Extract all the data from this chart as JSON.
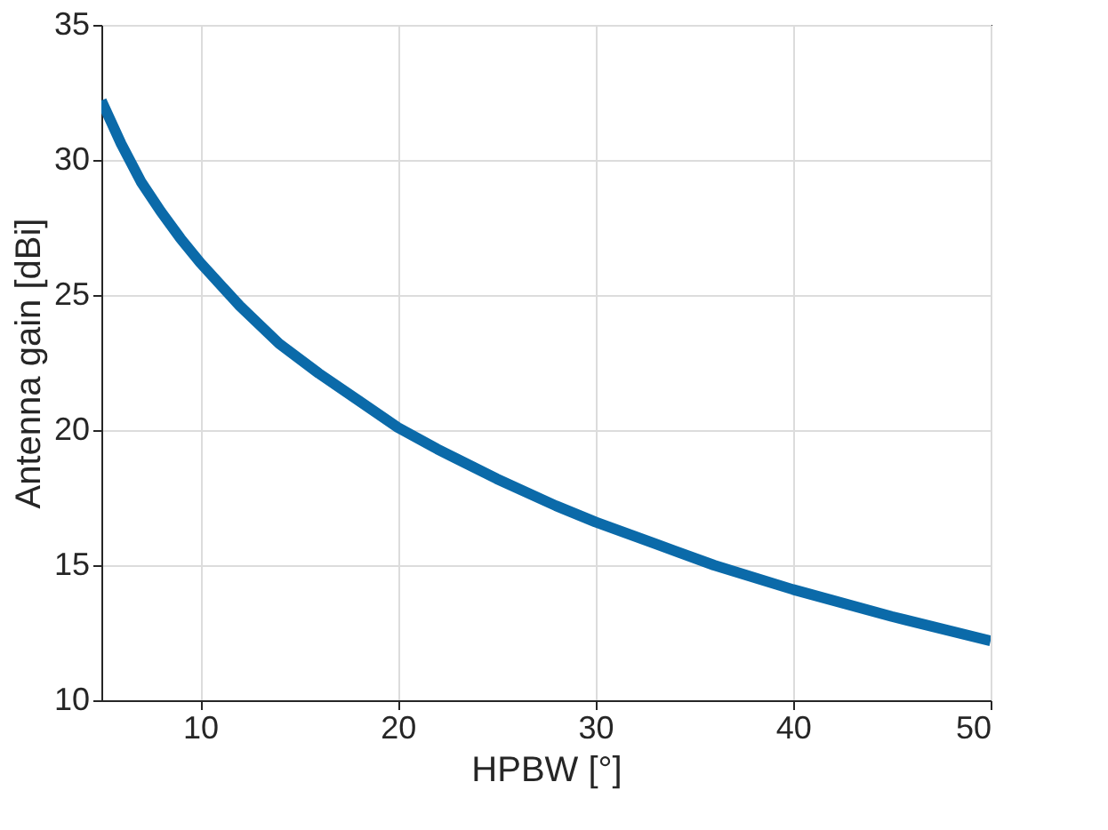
{
  "chart_data": {
    "type": "line",
    "xlabel": "HPBW [°]",
    "ylabel": "Antenna gain [dBi]",
    "x": [
      5,
      6,
      7,
      8,
      9,
      10,
      12,
      14,
      16,
      18,
      20,
      22,
      25,
      28,
      30,
      33,
      36,
      40,
      45,
      50
    ],
    "series": [
      {
        "color": "#0b6aa9",
        "values": [
          32.2,
          30.6,
          29.2,
          28.1,
          27.1,
          26.2,
          24.6,
          23.2,
          22.1,
          21.1,
          20.1,
          19.3,
          18.2,
          17.2,
          16.6,
          15.8,
          15.0,
          14.1,
          13.1,
          12.2
        ]
      }
    ],
    "xlim": [
      5,
      50
    ],
    "xticks": [
      10,
      20,
      30,
      40,
      50
    ],
    "ylim": [
      10,
      35
    ],
    "yticks": [
      10,
      15,
      20,
      25,
      30,
      35
    ],
    "grid": true,
    "marker": "none",
    "line_style": "solid"
  }
}
